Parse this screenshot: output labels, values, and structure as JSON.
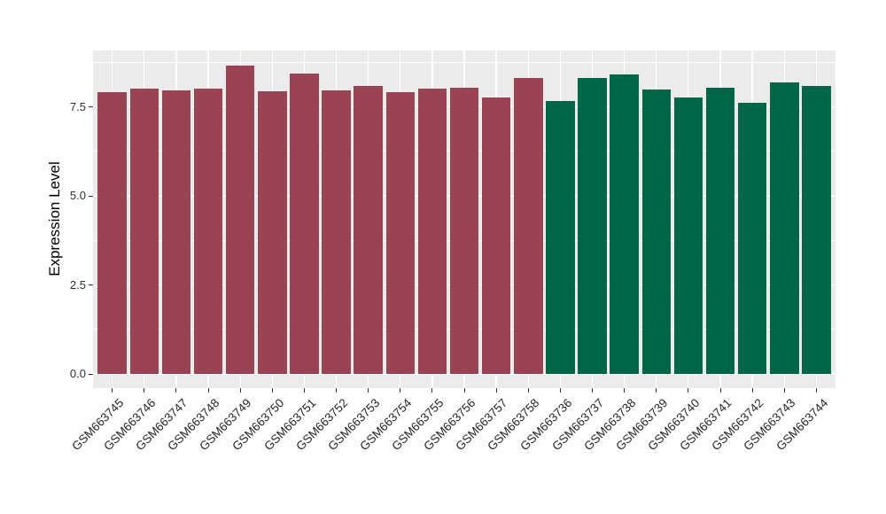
{
  "style": {
    "figure_background": "#FFFFFF",
    "panel_background": "#EBEBEB",
    "gridline_color": "#FFFFFF",
    "tick_mark_color": "#333333",
    "ytick_text_color": "#303030",
    "xtick_text_color": "#262626",
    "axis_title_color": "#000000"
  },
  "chart_data": {
    "type": "bar",
    "title": "",
    "xlabel": "",
    "ylabel": "Expression Level",
    "ylim": [
      0,
      9.08
    ],
    "ytick_labels": [
      "0.0",
      "2.5",
      "5.0",
      "7.5"
    ],
    "ytick_values": [
      0,
      2.5,
      5,
      7.5
    ],
    "minor_gridline_values": [
      1.25,
      3.75,
      6.25,
      8.75
    ],
    "grid": "on",
    "legend_position": "none",
    "bar_width_fraction": 0.9,
    "x_label_angle_deg": 45,
    "categories": [
      "GSM663745",
      "GSM663746",
      "GSM663747",
      "GSM663748",
      "GSM663749",
      "GSM663750",
      "GSM663751",
      "GSM663752",
      "GSM663753",
      "GSM663754",
      "GSM663755",
      "GSM663756",
      "GSM663757",
      "GSM663758",
      "GSM663736",
      "GSM663737",
      "GSM663738",
      "GSM663739",
      "GSM663740",
      "GSM663741",
      "GSM663742",
      "GSM663743",
      "GSM663744"
    ],
    "values": [
      7.92,
      8.02,
      7.97,
      8.0,
      8.65,
      7.93,
      8.44,
      7.95,
      8.09,
      7.92,
      8.01,
      8.03,
      7.77,
      8.31,
      7.67,
      8.3,
      8.4,
      7.98,
      7.76,
      8.04,
      7.61,
      8.19,
      8.09
    ],
    "series": [
      {
        "name": "red-group",
        "color": "#9A4352",
        "first_category": "GSM663745",
        "last_category": "GSM663758"
      },
      {
        "name": "green-group",
        "color": "#006648",
        "first_category": "GSM663736",
        "last_category": "GSM663744"
      }
    ],
    "bar_color_index": [
      0,
      0,
      0,
      0,
      0,
      0,
      0,
      0,
      0,
      0,
      0,
      0,
      0,
      0,
      1,
      1,
      1,
      1,
      1,
      1,
      1,
      1,
      1
    ]
  }
}
